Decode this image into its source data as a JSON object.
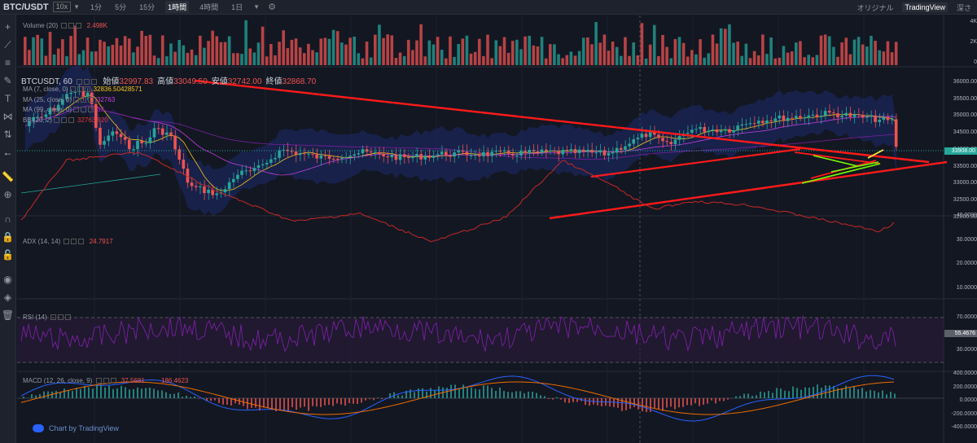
{
  "topbar": {
    "symbol": "BTC/USDT",
    "leverage": "10x",
    "timeframes": [
      {
        "label": "1分",
        "active": false
      },
      {
        "label": "5分",
        "active": false
      },
      {
        "label": "15分",
        "active": false
      },
      {
        "label": "1時間",
        "active": true
      },
      {
        "label": "4時間",
        "active": false
      },
      {
        "label": "1日",
        "active": false
      }
    ],
    "right": [
      {
        "label": "オリジナル",
        "active": false
      },
      {
        "label": "TradingView",
        "active": true
      },
      {
        "label": "深さ",
        "active": false
      }
    ]
  },
  "sidebar": {
    "tools": [
      "crosshair-icon",
      "trendline-icon",
      "fib-icon",
      "brush-icon",
      "text-icon",
      "pattern-icon",
      "prediction-icon",
      "back-arrow-icon",
      "ruler-icon",
      "zoom-icon",
      "magnet-icon",
      "lock-icon",
      "lock-open-icon",
      "eye-icon",
      "layers-icon",
      "trash-icon"
    ]
  },
  "volume": {
    "label": "Volume (20)",
    "value": "2.498K",
    "axis": [
      "4K",
      "2K",
      "0"
    ]
  },
  "main_chart": {
    "symbol": "BTCUSDT, 60",
    "ohlc": [
      {
        "k": "始値",
        "v": "32997.83"
      },
      {
        "k": "高値",
        "v": "33049.50"
      },
      {
        "k": "安値",
        "v": "32742.00"
      },
      {
        "k": "終値",
        "v": "32868.70"
      }
    ],
    "indicators": [
      {
        "name": "MA (7, close, 0)",
        "value": "32836.50428571",
        "color": "#f5c518"
      },
      {
        "name": "MA (25, close, 0)",
        "value": "32763",
        "color": "#c040e0"
      },
      {
        "name": "MA (99, close, 0)",
        "value": "33",
        "color": "#9c27b0"
      },
      {
        "name": "BB (20, 2)",
        "value": "32763.920",
        "color": "#e53935"
      }
    ],
    "axis": [
      "36000.00",
      "35500.00",
      "35000.00",
      "34500.00",
      "34000.00",
      "33500.00",
      "33000.00",
      "32500.00",
      "32000.00"
    ],
    "last_price": "33908.00"
  },
  "adx": {
    "label": "ADX (14, 14)",
    "value": "24.7917",
    "axis": [
      "40.0000",
      "30.0000",
      "20.0000",
      "10.0000"
    ]
  },
  "rsi": {
    "label": "RSI (14)",
    "axis": [
      "70.0000",
      "",
      "30.0000"
    ],
    "last_value": "55.4676"
  },
  "macd": {
    "label": "MACD (12, 26, close, 9)",
    "value1": "37.5681",
    "value2": "186.4623",
    "axis": [
      "400.0000",
      "200.0000",
      "0.0000",
      "-200.0000",
      "-400.0000"
    ]
  },
  "watermark": "Chart by TradingView",
  "colors": {
    "up": "#26a69a",
    "down": "#ef5350",
    "trend": "#ff1a1a",
    "green_line": "#76ff03",
    "yellow": "#ffeb3b"
  }
}
